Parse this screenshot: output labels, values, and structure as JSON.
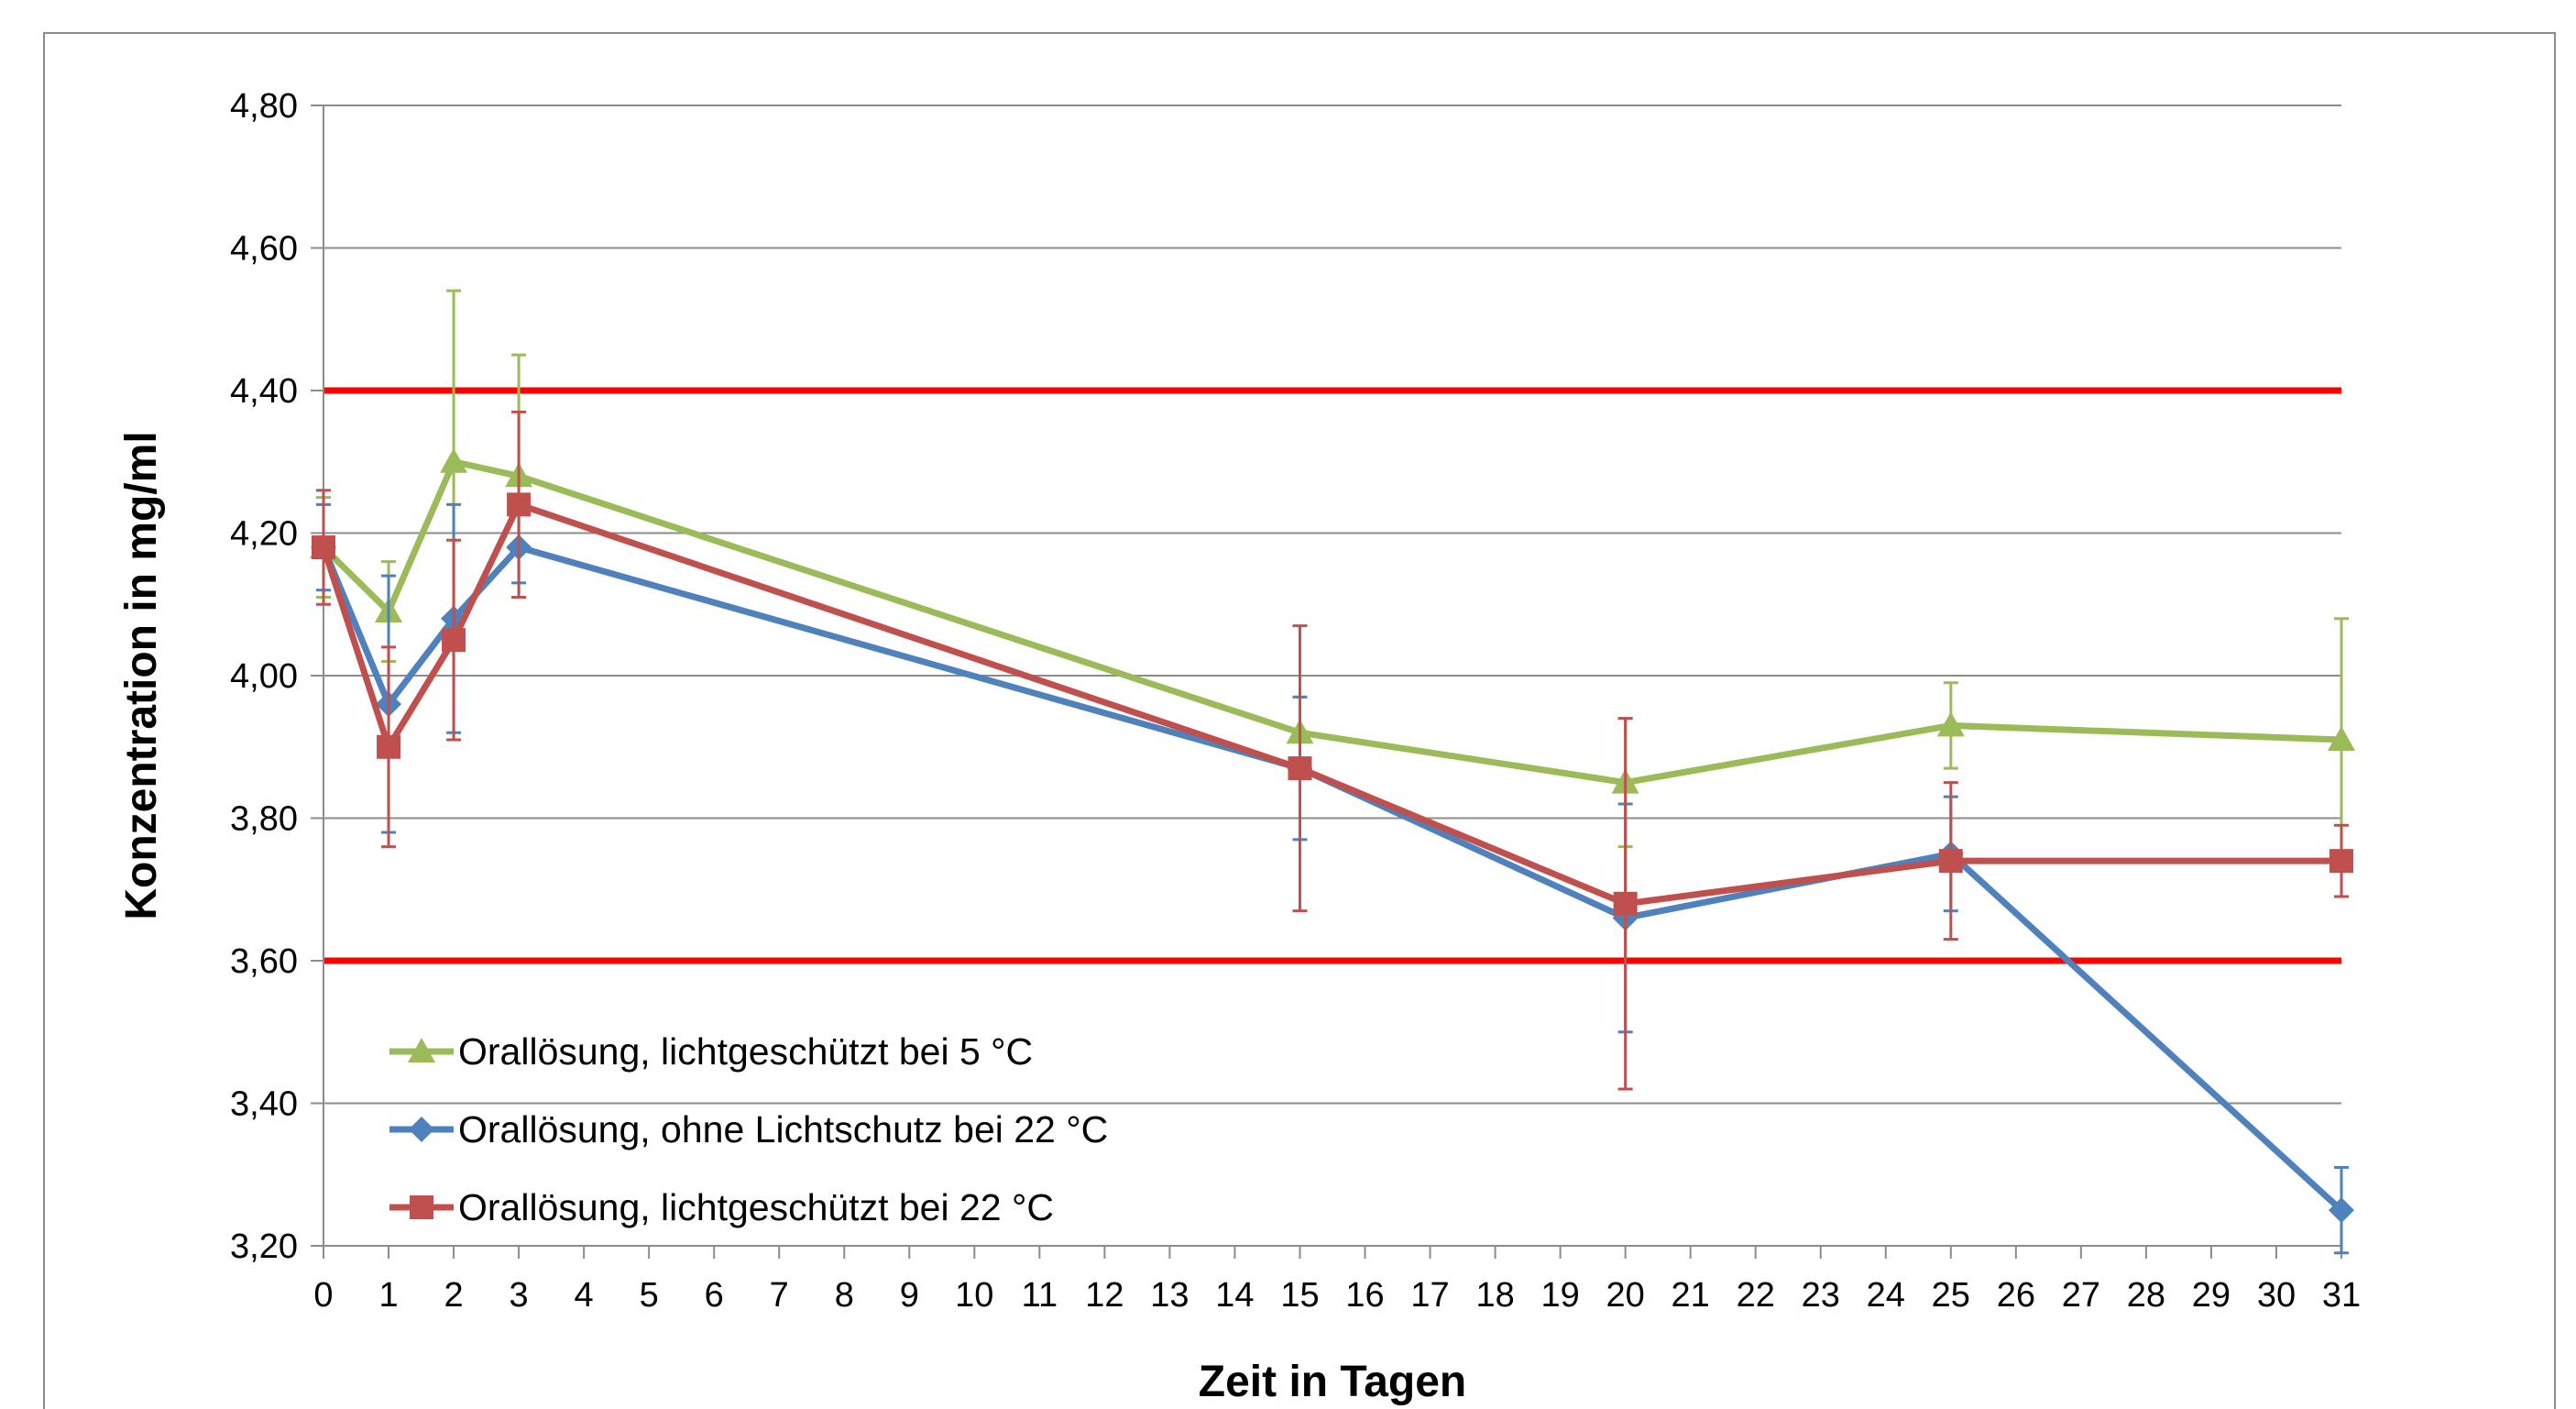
{
  "chart_data": {
    "type": "line",
    "title": "",
    "xlabel": "Zeit in Tagen",
    "ylabel": "Konzentration in mg/ml",
    "xlim": [
      0,
      31
    ],
    "ylim": [
      3.2,
      4.8
    ],
    "x_ticks": [
      "0",
      "1",
      "2",
      "3",
      "4",
      "5",
      "6",
      "7",
      "8",
      "9",
      "10",
      "11",
      "12",
      "13",
      "14",
      "15",
      "16",
      "17",
      "18",
      "19",
      "20",
      "21",
      "22",
      "23",
      "24",
      "25",
      "26",
      "27",
      "28",
      "29",
      "30",
      "31"
    ],
    "y_ticks": [
      "3,20",
      "3,40",
      "3,60",
      "3,80",
      "4,00",
      "4,20",
      "4,40",
      "4,60",
      "4,80"
    ],
    "grid": true,
    "legend_position": "bottom-left",
    "reference_lines": [
      {
        "y": 4.4,
        "color": "#ff0000"
      },
      {
        "y": 3.6,
        "color": "#ff0000"
      }
    ],
    "series": [
      {
        "name": "Orallösung, lichtgeschützt bei 5 °C",
        "color": "#9bbb59",
        "marker": "triangle",
        "x": [
          0,
          1,
          2,
          3,
          15,
          20,
          25,
          31
        ],
        "y": [
          4.18,
          4.09,
          4.3,
          4.28,
          3.92,
          3.85,
          3.93,
          3.91
        ],
        "error": [
          0.07,
          0.07,
          0.24,
          0.17,
          0.05,
          0.09,
          0.06,
          0.17
        ]
      },
      {
        "name": "Orallösung, ohne Lichtschutz bei 22 °C",
        "color": "#4f81bd",
        "marker": "diamond",
        "x": [
          0,
          1,
          2,
          3,
          15,
          20,
          25,
          31
        ],
        "y": [
          4.18,
          3.96,
          4.08,
          4.18,
          3.87,
          3.66,
          3.75,
          3.25
        ],
        "error": [
          0.06,
          0.18,
          0.16,
          0.05,
          0.1,
          0.16,
          0.08,
          0.06
        ]
      },
      {
        "name": "Orallösung, lichtgeschützt bei 22 °C",
        "color": "#c0504d",
        "marker": "square",
        "x": [
          0,
          1,
          2,
          3,
          15,
          20,
          25,
          31
        ],
        "y": [
          4.18,
          3.9,
          4.05,
          4.24,
          3.87,
          3.68,
          3.74,
          3.74
        ],
        "error": [
          0.08,
          0.14,
          0.14,
          0.13,
          0.2,
          0.26,
          0.11,
          0.05
        ]
      }
    ]
  }
}
